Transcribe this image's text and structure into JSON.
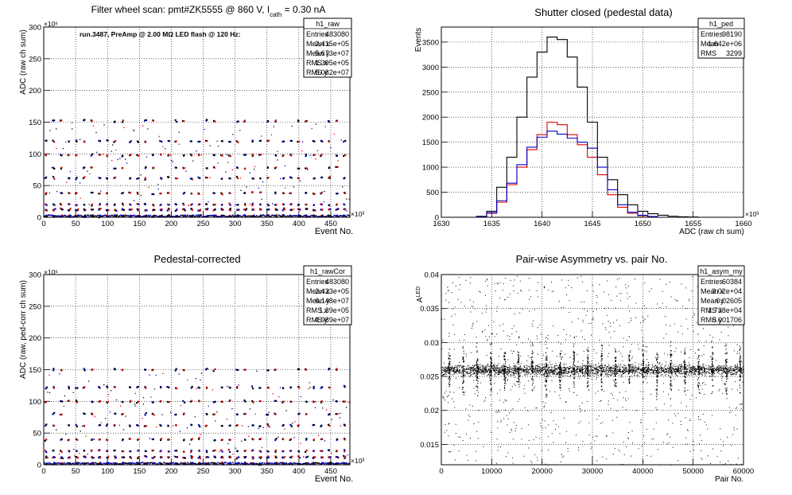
{
  "charts": [
    {
      "type": "scatter",
      "title": "Filter wheel scan: pmt#ZK5555 @   860 V, I",
      "title_sub": "cath",
      "title_rest": " = 0.30 nA",
      "annotation": "run.3487, PreAmp @ 2.00 MΩ LED flash @  120 Hz:",
      "xlabel": "Event No.",
      "ylabel": "ADC (raw ch sum)",
      "x_exp": "×10³",
      "y_exp": "×10⁶",
      "xlim": [
        0,
        480
      ],
      "ylim": [
        0,
        300
      ],
      "xticks": [
        "0",
        "50",
        "100",
        "150",
        "200",
        "250",
        "300",
        "350",
        "400",
        "450"
      ],
      "yticks": [
        "0",
        "50",
        "100",
        "150",
        "200",
        "250",
        "300"
      ],
      "stats": {
        "name": "h1_raw",
        "rows": [
          [
            "Entries",
            "483080"
          ],
          [
            "Mean x",
            "2.415e+05"
          ],
          [
            "Mean y",
            "5.673e+07"
          ],
          [
            "RMS x",
            "1.395e+05"
          ],
          [
            "RMS y",
            "5.082e+07"
          ]
        ]
      },
      "levels": [
        152,
        120,
        98,
        78,
        62,
        38,
        20,
        12,
        2
      ],
      "colors": {
        "red": "#e00000",
        "blue": "#0000c8",
        "black": "#000000"
      }
    },
    {
      "type": "line",
      "title": "Shutter closed (pedestal data)",
      "xlabel": "ADC (raw ch sum)",
      "ylabel": "Events",
      "x_exp": "×10³",
      "xlim": [
        1630,
        1660
      ],
      "ylim": [
        0,
        3800
      ],
      "xticks": [
        "1630",
        "1635",
        "1640",
        "1645",
        "1650",
        "1655",
        "1660"
      ],
      "yticks": [
        "0",
        "500",
        "1000",
        "1500",
        "2000",
        "2500",
        "3000",
        "3500"
      ],
      "stats": {
        "name": "h1_ped",
        "rows": [
          [
            "Entries",
            "98190"
          ],
          [
            "Mean",
            "1.642e+06"
          ],
          [
            "RMS",
            "3299"
          ]
        ]
      },
      "series": [
        {
          "color": "#000000",
          "x": [
            1634,
            1635,
            1636,
            1637,
            1638,
            1639,
            1640,
            1641,
            1642,
            1643,
            1644,
            1645,
            1646,
            1647,
            1648,
            1649,
            1650,
            1651,
            1652,
            1653,
            1654,
            1655
          ],
          "values": [
            20,
            120,
            600,
            1200,
            2000,
            2800,
            3300,
            3600,
            3550,
            3200,
            2600,
            1900,
            1200,
            750,
            450,
            250,
            120,
            70,
            40,
            20,
            10,
            5
          ]
        },
        {
          "color": "#e00000",
          "x": [
            1634,
            1635,
            1636,
            1637,
            1638,
            1639,
            1640,
            1641,
            1642,
            1643,
            1644,
            1645,
            1646,
            1647,
            1648,
            1649,
            1650,
            1651
          ],
          "values": [
            10,
            80,
            300,
            650,
            1000,
            1350,
            1650,
            1900,
            1850,
            1650,
            1450,
            1200,
            850,
            450,
            200,
            80,
            30,
            10
          ]
        },
        {
          "color": "#0000c8",
          "x": [
            1634,
            1635,
            1636,
            1637,
            1638,
            1639,
            1640,
            1641,
            1642,
            1643,
            1644,
            1645,
            1646,
            1647,
            1648,
            1649,
            1650,
            1651
          ],
          "values": [
            10,
            90,
            330,
            680,
            1050,
            1400,
            1600,
            1720,
            1660,
            1580,
            1500,
            1380,
            1000,
            550,
            250,
            100,
            40,
            15
          ]
        }
      ]
    },
    {
      "type": "scatter",
      "title": "Pedestal-corrected",
      "xlabel": "Event No.",
      "ylabel": "ADC (raw, ped-corr ch sum)",
      "x_exp": "×10³",
      "y_exp": "×10⁶",
      "xlim": [
        0,
        480
      ],
      "ylim": [
        0,
        300
      ],
      "xticks": [
        "0",
        "50",
        "100",
        "150",
        "200",
        "250",
        "300",
        "350",
        "400",
        "450"
      ],
      "yticks": [
        "0",
        "50",
        "100",
        "150",
        "200",
        "250",
        "300"
      ],
      "stats": {
        "name": "h1_rawCor",
        "rows": [
          [
            "Entries",
            "483080"
          ],
          [
            "Mean x",
            "2.423e+05"
          ],
          [
            "Mean y",
            "6.148e+07"
          ],
          [
            "RMS x",
            "1.39e+05"
          ],
          [
            "RMS y",
            "4.989e+07"
          ]
        ]
      },
      "levels": [
        150,
        122,
        100,
        80,
        62,
        40,
        22,
        12,
        2
      ],
      "colors": {
        "red": "#e00000",
        "blue": "#0000c8",
        "black": "#000000"
      }
    },
    {
      "type": "scatter",
      "title": "Pair-wise Asymmetry vs. pair No.",
      "xlabel": "Pair No.",
      "ylabel": "A",
      "ylabel_sub": "LED",
      "xlim": [
        0,
        60000
      ],
      "ylim": [
        0.012,
        0.04
      ],
      "xticks": [
        "0",
        "10000",
        "20000",
        "30000",
        "40000",
        "50000",
        "60000"
      ],
      "yticks": [
        "0.015",
        "0.02",
        "0.025",
        "0.03",
        "0.035",
        "0.04"
      ],
      "stats": {
        "name": "h1_asym_my",
        "rows": [
          [
            "Entries",
            "60384"
          ],
          [
            "Mean x",
            "3.02e+04"
          ],
          [
            "Mean y",
            "0.02605"
          ],
          [
            "RMS x",
            "1.738e+04"
          ],
          [
            "RMS y",
            "0.001706"
          ]
        ]
      },
      "band_center": 0.026,
      "colors": {
        "points": "#000000"
      }
    }
  ]
}
